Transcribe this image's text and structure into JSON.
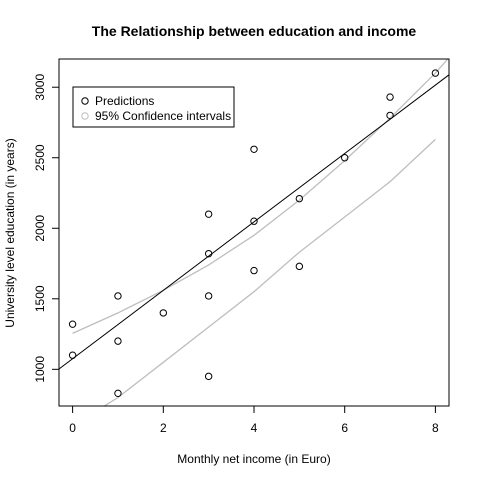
{
  "chart_data": {
    "type": "scatter",
    "title": "The Relationship between education and income",
    "xlabel": "Monthly net income (in Euro)",
    "ylabel": "University level education (in years)",
    "xlim": [
      -0.3,
      8.3
    ],
    "ylim": [
      740,
      3200
    ],
    "x_ticks": [
      0,
      2,
      4,
      6,
      8
    ],
    "y_ticks": [
      1000,
      1500,
      2000,
      2500,
      3000
    ],
    "legend": {
      "placement": "top-left",
      "entries": [
        {
          "label": "Predictions",
          "color": "#000000"
        },
        {
          "label": "95% Confidence intervals",
          "color": "#bebebe"
        }
      ]
    },
    "points": [
      {
        "x": 0,
        "y": 1320
      },
      {
        "x": 0,
        "y": 1100
      },
      {
        "x": 1,
        "y": 1520
      },
      {
        "x": 1,
        "y": 1200
      },
      {
        "x": 1,
        "y": 830
      },
      {
        "x": 2,
        "y": 1400
      },
      {
        "x": 3,
        "y": 2100
      },
      {
        "x": 3,
        "y": 1820
      },
      {
        "x": 3,
        "y": 1520
      },
      {
        "x": 3,
        "y": 950
      },
      {
        "x": 4,
        "y": 2560
      },
      {
        "x": 4,
        "y": 2050
      },
      {
        "x": 4,
        "y": 1700
      },
      {
        "x": 5,
        "y": 2210
      },
      {
        "x": 5,
        "y": 1730
      },
      {
        "x": 6,
        "y": 2500
      },
      {
        "x": 7,
        "y": 2930
      },
      {
        "x": 7,
        "y": 2800
      },
      {
        "x": 8,
        "y": 3100
      }
    ],
    "fit_line": {
      "intercept": 1075,
      "slope": 242.5,
      "color": "#000000"
    },
    "confidence_upper": [
      [
        0,
        1255
      ],
      [
        1,
        1400
      ],
      [
        2,
        1560
      ],
      [
        3,
        1740
      ],
      [
        4,
        1950
      ],
      [
        5,
        2200
      ],
      [
        6,
        2480
      ],
      [
        7,
        2780
      ],
      [
        8,
        3100
      ],
      [
        8.3,
        3210
      ]
    ],
    "confidence_lower": [
      [
        0,
        600
      ],
      [
        0.5,
        700
      ],
      [
        1,
        800
      ],
      [
        2,
        1050
      ],
      [
        3,
        1300
      ],
      [
        4,
        1550
      ],
      [
        5,
        1830
      ],
      [
        6,
        2080
      ],
      [
        7,
        2330
      ],
      [
        8,
        2630
      ]
    ],
    "confidence_color": "#bebebe",
    "grid": false
  }
}
